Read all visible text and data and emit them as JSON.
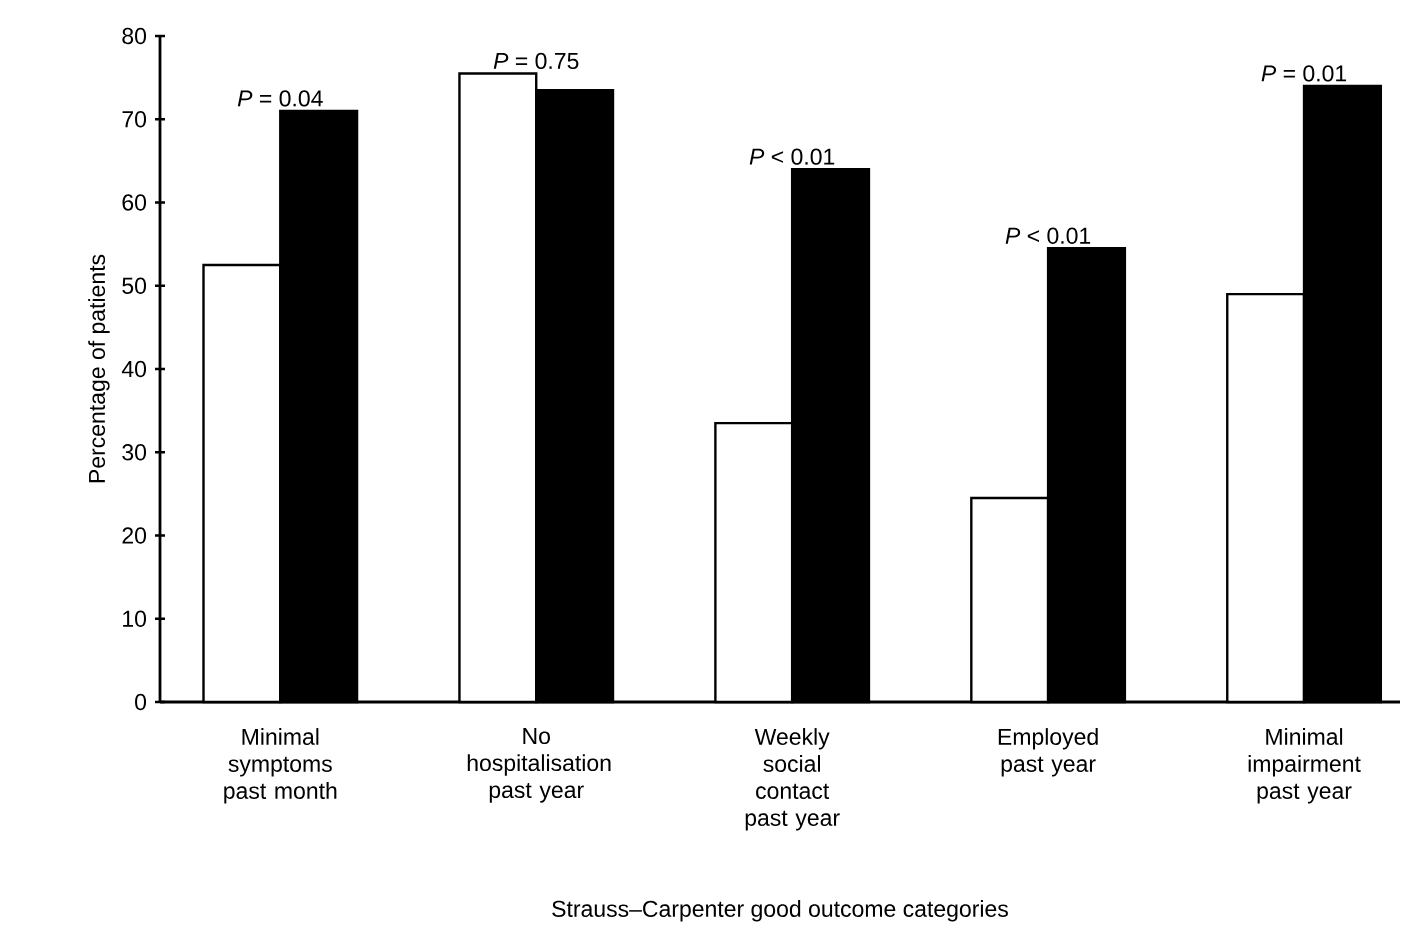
{
  "chart_data": {
    "type": "bar",
    "xlabel": "Strauss–Carpenter good outcome categories",
    "ylabel": "Percentage of patients",
    "categories": [
      "Minimal symptoms past month",
      "No hospitalisation past year",
      "Weekly social contact past year",
      "Employed past year",
      "Minimal impairment past year"
    ],
    "series": [
      {
        "color": "#ffffff",
        "values": [
          52.5,
          75.5,
          33.5,
          24.5,
          49
        ]
      },
      {
        "color": "#000000",
        "values": [
          71,
          73.5,
          64,
          54.5,
          74
        ]
      }
    ],
    "ylim": [
      0,
      80
    ],
    "yticks": [
      0,
      10,
      20,
      30,
      40,
      50,
      60,
      70,
      80
    ],
    "grid": false,
    "annotations": [
      {
        "text": "*P* = 0.04",
        "x": "Minimal symptoms past month",
        "y": 71
      },
      {
        "text": "*P* = 0.75",
        "x": "No hospitalisation past year",
        "y": 75.5
      },
      {
        "text": "*P* < 0.01",
        "x": "Weekly social contact past year",
        "y": 64
      },
      {
        "text": "*P* < 0.01",
        "x": "Employed past year",
        "y": 54.5
      },
      {
        "text": "*P* = 0.01",
        "x": "Minimal impairment past year",
        "y": 74
      }
    ]
  }
}
